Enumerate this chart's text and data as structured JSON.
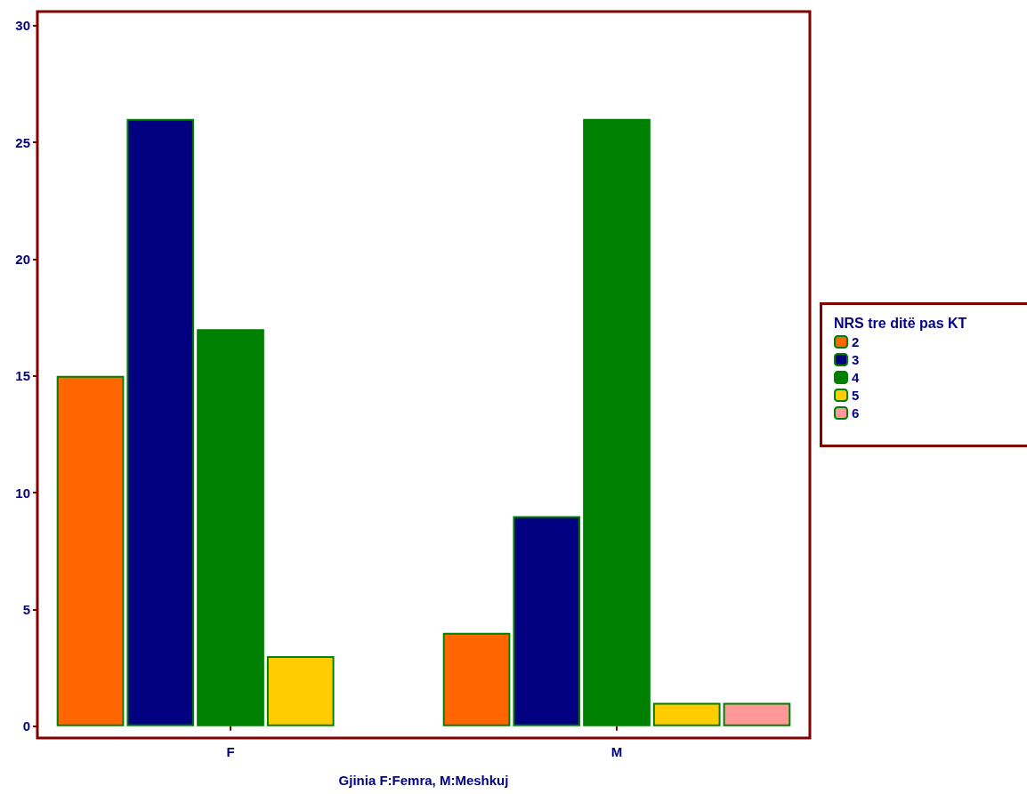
{
  "chart_data": {
    "type": "bar",
    "xlabel": "Gjinia F:Femra, M:Meshkuj",
    "legend_title": "NRS tre ditë pas KT",
    "categories": [
      "F",
      "M"
    ],
    "series": [
      {
        "name": "2",
        "color": "#ff6600",
        "values": [
          15,
          4
        ]
      },
      {
        "name": "3",
        "color": "#000080",
        "values": [
          26,
          9
        ]
      },
      {
        "name": "4",
        "color": "#008000",
        "values": [
          17,
          26
        ]
      },
      {
        "name": "5",
        "color": "#ffcc00",
        "values": [
          3,
          1
        ]
      },
      {
        "name": "6",
        "color": "#ff9999",
        "values": [
          null,
          1
        ]
      }
    ],
    "ylim": [
      -0.5,
      30.6
    ],
    "yticks": [
      0,
      5,
      10,
      15,
      20,
      25,
      30
    ],
    "grid": false,
    "legend": "right"
  }
}
